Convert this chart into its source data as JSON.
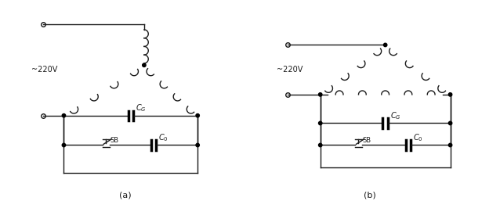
{
  "fig_width": 6.38,
  "fig_height": 2.71,
  "dpi": 100,
  "bg_color": "#ffffff",
  "line_color": "#1a1a1a",
  "label_a": "(a)",
  "label_b": "(b)",
  "voltage_label": "~220V"
}
